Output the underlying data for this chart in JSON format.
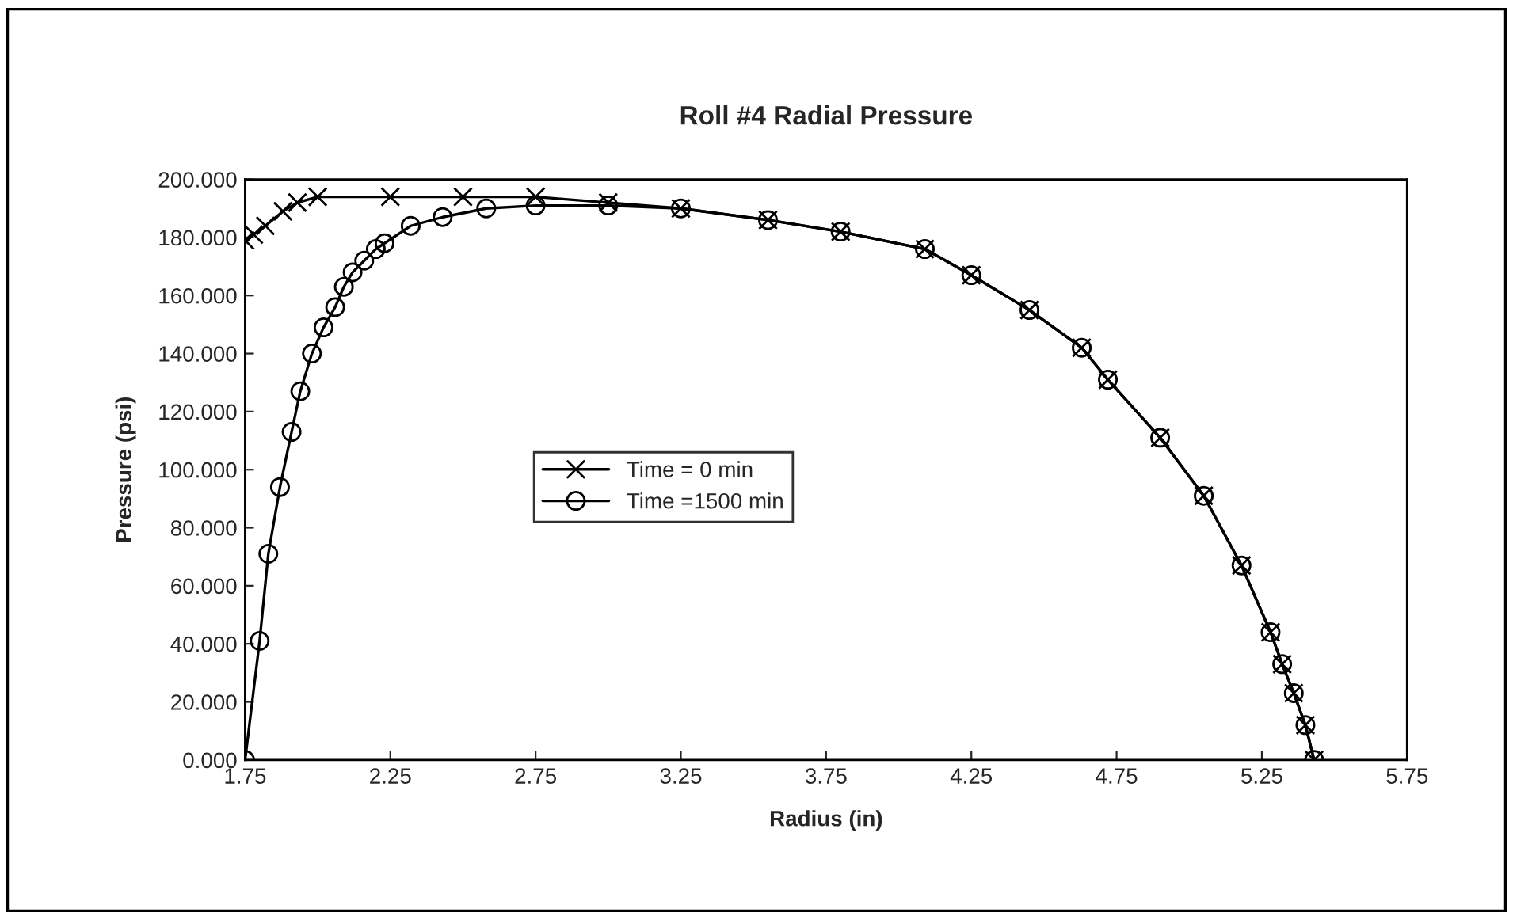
{
  "chart_data": {
    "type": "line",
    "title": "Roll #4 Radial Pressure",
    "xlabel": "Radius (in)",
    "ylabel": "Pressure (psi)",
    "xlim": [
      1.75,
      5.75
    ],
    "xticks": [
      1.75,
      2.25,
      2.75,
      3.25,
      3.75,
      4.25,
      4.75,
      5.25,
      5.75
    ],
    "ylim": [
      0,
      200
    ],
    "yticks": [
      {
        "value": 0,
        "label": "0.000"
      },
      {
        "value": 20,
        "label": "20.000"
      },
      {
        "value": 40,
        "label": "40.000"
      },
      {
        "value": 60,
        "label": "60.000"
      },
      {
        "value": 80,
        "label": "80.000"
      },
      {
        "value": 100,
        "label": "100.000"
      },
      {
        "value": 120,
        "label": "120.000"
      },
      {
        "value": 140,
        "label": "140.000"
      },
      {
        "value": 160,
        "label": "160.000"
      },
      {
        "value": 180,
        "label": "180.000"
      },
      {
        "value": 200,
        "label": "200.000"
      }
    ],
    "grid": false,
    "legend": "center",
    "line_style": "solid",
    "series": [
      {
        "name": "Time = 0 min",
        "color": "#000000",
        "marker": "cross",
        "x": [
          1.75,
          1.78,
          1.82,
          1.88,
          1.93,
          2.0,
          2.25,
          2.5,
          2.75,
          3.0,
          3.25,
          3.55,
          3.8,
          4.09,
          4.25,
          4.45,
          4.63,
          4.72,
          4.9,
          5.05,
          5.18,
          5.28,
          5.32,
          5.36,
          5.4,
          5.43
        ],
        "values": [
          179,
          181,
          184,
          189,
          192,
          194,
          194,
          194,
          194,
          192,
          190,
          186,
          182,
          176,
          167,
          155,
          142,
          131,
          111,
          91,
          67,
          44,
          33,
          23,
          12,
          0
        ]
      },
      {
        "name": "Time =1500 min",
        "color": "#000000",
        "marker": "circle",
        "x": [
          1.75,
          1.8,
          1.83,
          1.87,
          1.91,
          1.94,
          1.98,
          2.02,
          2.06,
          2.09,
          2.12,
          2.16,
          2.2,
          2.23,
          2.32,
          2.43,
          2.58,
          2.75,
          3.0,
          3.25,
          3.55,
          3.8,
          4.09,
          4.25,
          4.45,
          4.63,
          4.72,
          4.9,
          5.05,
          5.18,
          5.28,
          5.32,
          5.36,
          5.4,
          5.43
        ],
        "values": [
          0,
          41,
          71,
          94,
          113,
          127,
          140,
          149,
          156,
          163,
          168,
          172,
          176,
          178,
          184,
          187,
          190,
          191,
          191,
          190,
          186,
          182,
          176,
          167,
          155,
          142,
          131,
          111,
          91,
          67,
          44,
          33,
          23,
          12,
          0
        ]
      }
    ]
  }
}
